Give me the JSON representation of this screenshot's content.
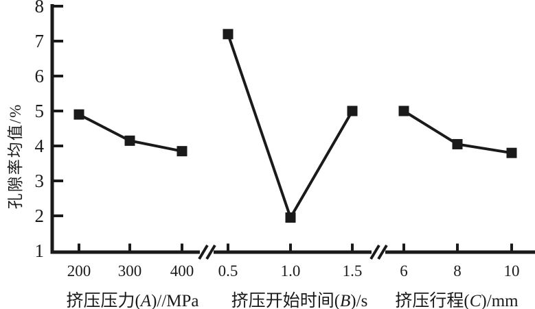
{
  "chart_data": {
    "type": "line",
    "title": "",
    "ylabel": "孔隙率均值/%",
    "ylim": [
      1,
      8
    ],
    "yticks": [
      1,
      2,
      3,
      4,
      5,
      6,
      7,
      8
    ],
    "grid": false,
    "legend": "none",
    "marker": "filled-square",
    "line_color": "#1a1a1a",
    "background": "#ffffff",
    "axis_break_between_panels": true,
    "panels": [
      {
        "id": "A",
        "xlabel": "挤压压力(A)//MPa",
        "xlabel_prefix": "挤压压力(",
        "xlabel_letter": "A",
        "xlabel_suffix": ")//MPa",
        "categories": [
          "200",
          "300",
          "400"
        ],
        "values": [
          4.9,
          4.15,
          3.85
        ]
      },
      {
        "id": "B",
        "xlabel": "挤压开始时间(B)/s",
        "xlabel_prefix": "挤压开始时间(",
        "xlabel_letter": "B",
        "xlabel_suffix": ")/s",
        "categories": [
          "0.5",
          "1.0",
          "1.5"
        ],
        "values": [
          7.2,
          1.95,
          5.0
        ]
      },
      {
        "id": "C",
        "xlabel": "挤压行程(C)/mm",
        "xlabel_prefix": "挤压行程(",
        "xlabel_letter": "C",
        "xlabel_suffix": ")/mm",
        "categories": [
          "6",
          "8",
          "10"
        ],
        "values": [
          5.0,
          4.05,
          3.8
        ]
      }
    ]
  }
}
